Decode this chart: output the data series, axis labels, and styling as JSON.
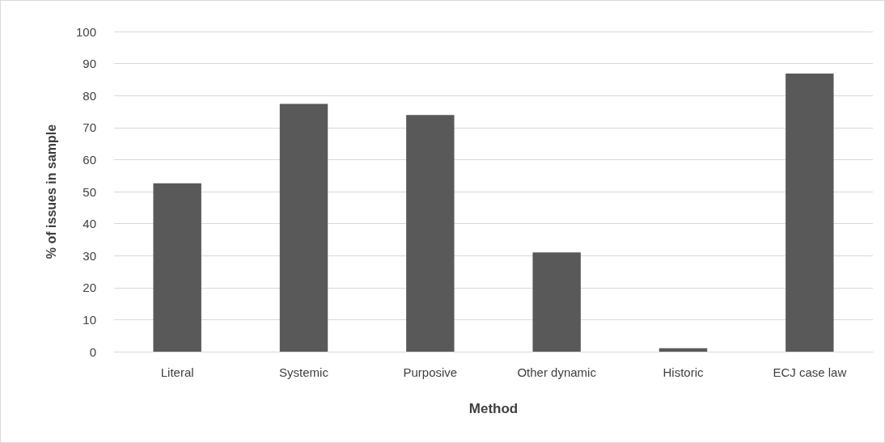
{
  "chart_data": {
    "type": "bar",
    "xlabel": "Method",
    "ylabel": "% of issues in sample",
    "categories": [
      "Literal",
      "Systemic",
      "Purposive",
      "Other dynamic",
      "Historic",
      "ECJ case law"
    ],
    "values": [
      52.6,
      77.4,
      73.9,
      31,
      1.1,
      86.9
    ],
    "color": "#595959",
    "ylim": [
      0,
      100
    ],
    "yticks": [
      0,
      10,
      20,
      30,
      40,
      50,
      60,
      70,
      80,
      90,
      100
    ],
    "grid": "y"
  }
}
